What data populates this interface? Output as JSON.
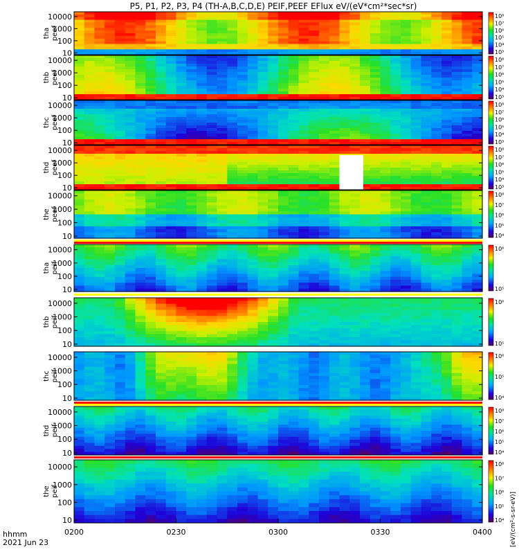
{
  "title": "P5, P1, P2, P3, P4 (TH-A,B,C,D,E) PEIF,PEEF EFlux eV/(eV*cm²*sec*sr)",
  "footer": {
    "time_label": "hhmm",
    "date_label": "2021 Jun 23"
  },
  "colorbar_unit_label": "[eV/(cm²-s-sr-eV)]",
  "chart_data": {
    "type": "heatmap",
    "x_axis": {
      "ticks": [
        "0200",
        "0230",
        "0300",
        "0330",
        "0400"
      ],
      "range": [
        "02:00",
        "04:00"
      ]
    },
    "y_axis": {
      "scale": "log",
      "ticks": [
        "10",
        "100",
        "1000",
        "10000"
      ],
      "range_eV": [
        7,
        25000
      ]
    },
    "panels": [
      {
        "probe": "tha",
        "species": "peef",
        "ylabels": [
          "tha",
          "peef"
        ],
        "pattern": "electron-hot",
        "cbar_ticks": [
          "10⁸",
          "10⁷",
          "10⁶",
          "10⁵",
          "10⁴",
          "10³"
        ]
      },
      {
        "probe": "thb",
        "species": "peef",
        "ylabels": [
          "thb",
          "peef"
        ],
        "pattern": "electron-warm",
        "cbar_ticks": [
          "10⁸",
          "10⁷",
          "10⁶",
          "10⁵",
          "10⁴",
          "10³"
        ]
      },
      {
        "probe": "thc",
        "species": "peef",
        "ylabels": [
          "thc",
          "peef"
        ],
        "pattern": "electron-cool",
        "cbar_ticks": [
          "10⁸",
          "10⁷",
          "10⁶",
          "10⁵",
          "10⁴",
          "10³"
        ]
      },
      {
        "probe": "thd",
        "species": "peef",
        "ylabels": [
          "thd",
          "peef"
        ],
        "pattern": "electron-gap",
        "gap": [
          "03:18",
          "03:25"
        ],
        "cbar_ticks": [
          "10⁸",
          "10⁷",
          "10⁶",
          "10⁵",
          "10⁴",
          "10³"
        ]
      },
      {
        "probe": "the",
        "species": "peef",
        "ylabels": [
          "the",
          "peef"
        ],
        "pattern": "electron-green",
        "cbar_ticks": [
          "10⁸",
          "10⁷",
          "10⁶",
          "10⁵",
          "10⁴"
        ]
      },
      {
        "probe": "tha",
        "species": "peif",
        "ylabels": [
          "tha",
          "peif"
        ],
        "pattern": "ion-cool",
        "cbar_ticks": [
          "10⁶",
          "10⁵"
        ]
      },
      {
        "probe": "thb",
        "species": "peif",
        "ylabels": [
          "thb",
          "peif"
        ],
        "pattern": "ion-warm",
        "cbar_ticks": [
          "10⁶",
          "10⁵"
        ]
      },
      {
        "probe": "thc",
        "species": "peif",
        "ylabels": [
          "thc",
          "peif"
        ],
        "pattern": "ion-mixed",
        "cbar_ticks": [
          "10⁶",
          "10⁵",
          "10⁴"
        ]
      },
      {
        "probe": "thd",
        "species": "peif",
        "ylabels": [
          "thd",
          "peif"
        ],
        "pattern": "ion-blue",
        "cbar_ticks": [
          "10⁸",
          "10⁷",
          "10⁶",
          "10⁵",
          "10⁴"
        ]
      },
      {
        "probe": "the",
        "species": "peif",
        "ylabels": [
          "the",
          "peif"
        ],
        "pattern": "ion-blue2",
        "cbar_ticks": [
          "10⁸",
          "10⁷",
          "10⁶",
          "10⁵",
          "10⁴"
        ]
      }
    ]
  }
}
